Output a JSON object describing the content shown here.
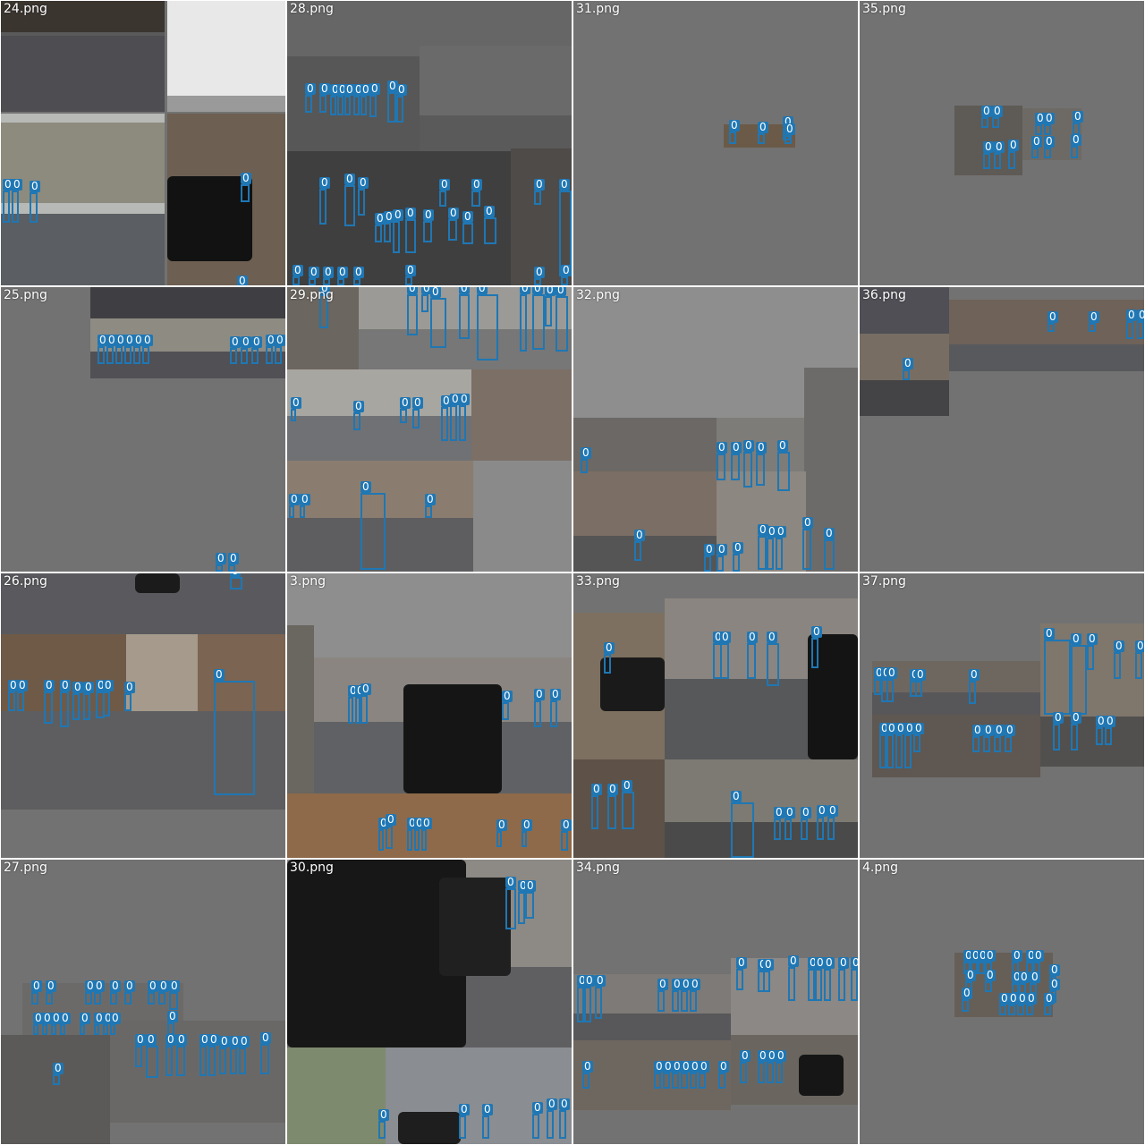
{
  "colors": {
    "tile_bg": "#727272",
    "box": "#1f77b4",
    "label_text": "#ffffff"
  },
  "class_label": "0",
  "tiles": [
    {
      "label": "24.png"
    },
    {
      "label": "28.png"
    },
    {
      "label": "31.png"
    },
    {
      "label": "35.png"
    },
    {
      "label": "25.png"
    },
    {
      "label": "29.png"
    },
    {
      "label": "32.png"
    },
    {
      "label": "36.png"
    },
    {
      "label": "26.png"
    },
    {
      "label": "3.png"
    },
    {
      "label": "33.png"
    },
    {
      "label": "37.png"
    },
    {
      "label": "27.png"
    },
    {
      "label": "30.png"
    },
    {
      "label": "34.png"
    },
    {
      "label": "4.png"
    }
  ]
}
